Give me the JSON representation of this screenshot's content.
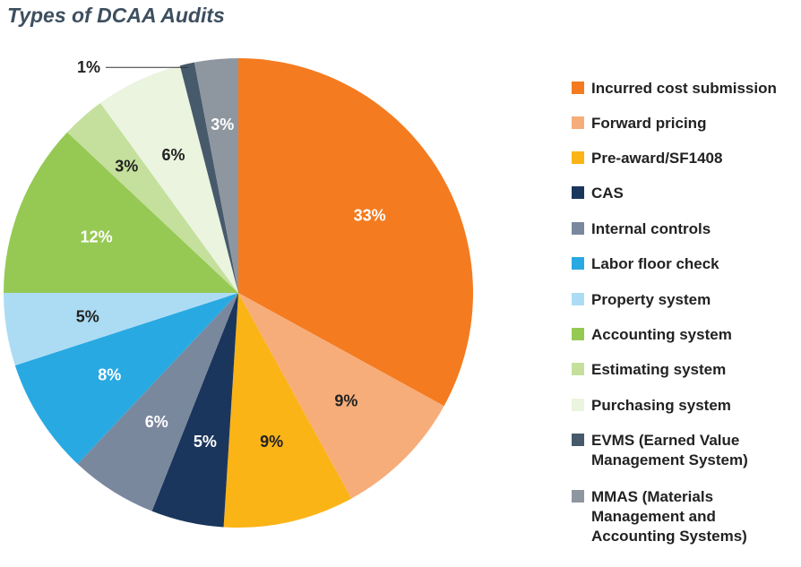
{
  "chart_data": {
    "type": "pie",
    "title": "Types of DCAA Audits",
    "start": "top",
    "direction": "clockwise",
    "legend_position": "right",
    "slices": [
      {
        "label": "Incurred cost submission",
        "value": 33,
        "display": "33%",
        "color": "#f47b20",
        "text_color": "#ffffff"
      },
      {
        "label": "Forward pricing",
        "value": 9,
        "display": "9%",
        "color": "#f6ad7a",
        "text_color": "#222222"
      },
      {
        "label": "Pre-award/SF1408",
        "value": 9,
        "display": "9%",
        "color": "#fbb416",
        "text_color": "#222222"
      },
      {
        "label": "CAS",
        "value": 5,
        "display": "5%",
        "color": "#1b365d",
        "text_color": "#ffffff"
      },
      {
        "label": "Internal controls",
        "value": 6,
        "display": "6%",
        "color": "#7a889e",
        "text_color": "#ffffff"
      },
      {
        "label": "Labor floor check",
        "value": 8,
        "display": "8%",
        "color": "#29a9e1",
        "text_color": "#ffffff"
      },
      {
        "label": "Property system",
        "value": 5,
        "display": "5%",
        "color": "#acdcf4",
        "text_color": "#222222"
      },
      {
        "label": "Accounting system",
        "value": 12,
        "display": "12%",
        "color": "#96c954",
        "text_color": "#ffffff"
      },
      {
        "label": "Estimating system",
        "value": 3,
        "display": "3%",
        "color": "#c4e09c",
        "text_color": "#222222"
      },
      {
        "label": "Purchasing system",
        "value": 6,
        "display": "6%",
        "color": "#eaf4de",
        "text_color": "#222222"
      },
      {
        "label": "EVMS (Earned Value\nManagement System)",
        "value": 1,
        "display": "1%",
        "color": "#465a6b",
        "text_color": "#222222",
        "outside_label": true
      },
      {
        "label": "MMAS  (Materials\nManagement and\nAccounting Systems)",
        "value": 3,
        "display": "3%",
        "color": "#8e96a0",
        "text_color": "#ffffff"
      }
    ]
  }
}
